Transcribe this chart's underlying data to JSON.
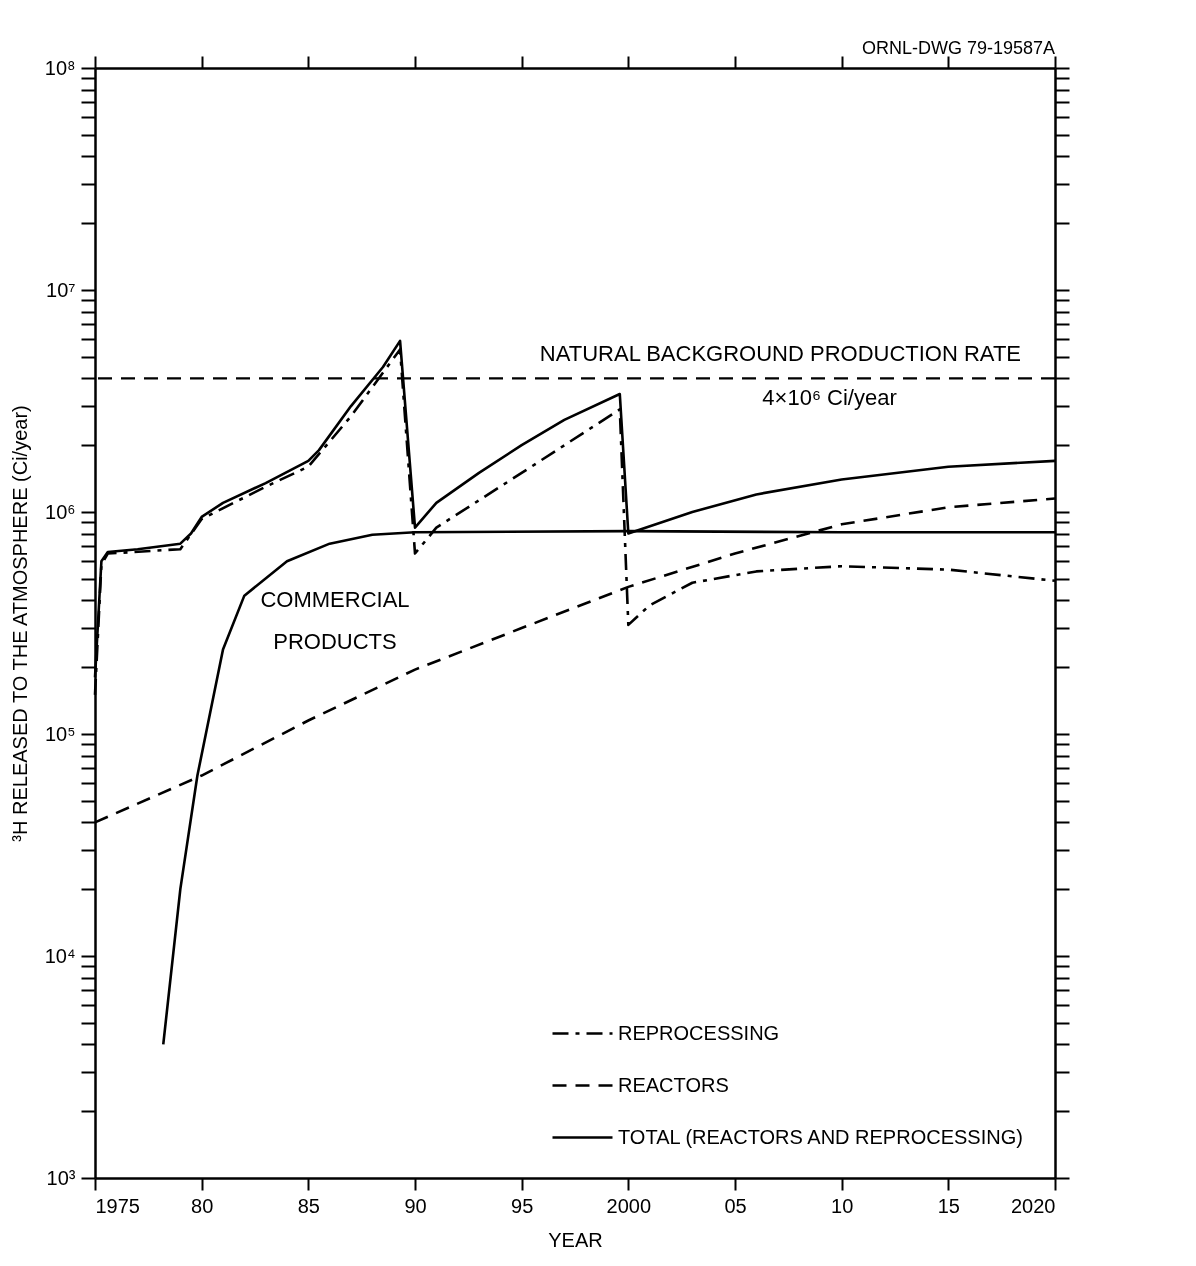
{
  "chart_data": {
    "type": "line",
    "xlabel": "YEAR",
    "ylabel": "³H RELEASED TO THE ATMOSPHERE (Ci/year)",
    "log": "y",
    "grid": false,
    "legend": "bottom right",
    "xlim": [
      1975,
      2020
    ],
    "xticks": [
      1975,
      {
        "value": 1980,
        "label": "80"
      },
      {
        "value": 1985,
        "label": "85"
      },
      {
        "value": 1990,
        "label": "90"
      },
      {
        "value": 1995,
        "label": "95"
      },
      2000,
      {
        "value": 2005,
        "label": "05"
      },
      {
        "value": 2010,
        "label": "10"
      },
      {
        "value": 2015,
        "label": "15"
      },
      2020
    ],
    "ylim": [
      1000,
      100000000
    ],
    "yticks": [
      {
        "value": 1000,
        "label": "10³"
      },
      {
        "value": 2000,
        "label": null
      },
      {
        "value": 3000,
        "label": null
      },
      {
        "value": 4000,
        "label": null
      },
      {
        "value": 5000,
        "label": null
      },
      {
        "value": 6000,
        "label": null
      },
      {
        "value": 7000,
        "label": null
      },
      {
        "value": 8000,
        "label": null
      },
      {
        "value": 9000,
        "label": null
      },
      {
        "value": 10000,
        "label": "10⁴"
      },
      {
        "value": 20000,
        "label": null
      },
      {
        "value": 30000,
        "label": null
      },
      {
        "value": 40000,
        "label": null
      },
      {
        "value": 50000,
        "label": null
      },
      {
        "value": 60000,
        "label": null
      },
      {
        "value": 70000,
        "label": null
      },
      {
        "value": 80000,
        "label": null
      },
      {
        "value": 90000,
        "label": null
      },
      {
        "value": 100000,
        "label": "10⁵"
      },
      {
        "value": 200000,
        "label": null
      },
      {
        "value": 300000,
        "label": null
      },
      {
        "value": 400000,
        "label": null
      },
      {
        "value": 500000,
        "label": null
      },
      {
        "value": 600000,
        "label": null
      },
      {
        "value": 700000,
        "label": null
      },
      {
        "value": 800000,
        "label": null
      },
      {
        "value": 900000,
        "label": null
      },
      {
        "value": 1000000,
        "label": "10⁶"
      },
      {
        "value": 2000000,
        "label": null
      },
      {
        "value": 3000000,
        "label": null
      },
      {
        "value": 4000000,
        "label": null
      },
      {
        "value": 5000000,
        "label": null
      },
      {
        "value": 6000000,
        "label": null
      },
      {
        "value": 7000000,
        "label": null
      },
      {
        "value": 8000000,
        "label": null
      },
      {
        "value": 9000000,
        "label": null
      },
      {
        "value": 10000000,
        "label": "10⁷"
      },
      {
        "value": 20000000,
        "label": null
      },
      {
        "value": 30000000,
        "label": null
      },
      {
        "value": 40000000,
        "label": null
      },
      {
        "value": 50000000,
        "label": null
      },
      {
        "value": 60000000,
        "label": null
      },
      {
        "value": 70000000,
        "label": null
      },
      {
        "value": 80000000,
        "label": null
      },
      {
        "value": 90000000,
        "label": null
      },
      {
        "value": 100000000,
        "label": "10⁸"
      }
    ],
    "series": [
      {
        "name": "REPROCESSING",
        "color": "#000000",
        "line_style": "dashdot",
        "x": [
          1975,
          1975.3,
          1975.6,
          1979,
          1980,
          1983,
          1985,
          1987,
          1989.3,
          1990,
          1991,
          1995,
          1999.6,
          2000,
          2001,
          2003,
          2006,
          2010,
          2015,
          2020
        ],
        "values": [
          150000,
          580000,
          650000,
          680000,
          930000,
          1300000,
          1600000,
          2700000,
          5400000,
          650000,
          850000,
          1500000,
          2900000,
          310000,
          380000,
          480000,
          540000,
          570000,
          550000,
          490000
        ]
      },
      {
        "name": "REACTORS",
        "color": "#000000",
        "line_style": "dashed",
        "x": [
          1975,
          1980,
          1985,
          1990,
          1995,
          2000,
          2005,
          2010,
          2015,
          2020
        ],
        "values": [
          40000,
          65000,
          115000,
          195000,
          300000,
          460000,
          650000,
          880000,
          1050000,
          1150000
        ]
      },
      {
        "name": "TOTAL (REACTORS AND REPROCESSING)",
        "color": "#000000",
        "line_style": "solid",
        "x": [
          1975,
          1975.3,
          1975.6,
          1977,
          1979,
          1979.5,
          1980,
          1981,
          1983,
          1985,
          1985.5,
          1987,
          1988.5,
          1989.3,
          1990,
          1991,
          1993,
          1995,
          1997,
          1999.6,
          2000,
          2003,
          2006,
          2010,
          2015,
          2020
        ],
        "values": [
          180000,
          600000,
          660000,
          680000,
          720000,
          800000,
          950000,
          1100000,
          1350000,
          1700000,
          1900000,
          3000000,
          4500000,
          5900000,
          850000,
          1100000,
          1500000,
          2000000,
          2600000,
          3400000,
          800000,
          1000000,
          1200000,
          1400000,
          1600000,
          1700000
        ]
      },
      {
        "color": "#000000",
        "line_style": "solid",
        "x": [
          1978.2,
          1979,
          1979.8,
          1981,
          1982,
          1984,
          1986,
          1988,
          1990,
          2000,
          2010,
          2020
        ],
        "values": [
          4000,
          20000,
          65000,
          240000,
          420000,
          600000,
          720000,
          790000,
          810000,
          820000,
          810000,
          810000
        ]
      }
    ],
    "ref_lines": [
      {
        "axis": "y",
        "value": 4000000,
        "label": "NATURAL BACKGROUND PRODUCTION RATE",
        "color": "#000000",
        "line_style": "dashed"
      }
    ],
    "annotations": [
      {
        "text": "4×10⁶ Ci/year",
        "x": 2006,
        "y": 4000000
      },
      "COMMERCIAL PRODUCTS",
      "ORNL-DWG 79-19587A"
    ]
  }
}
